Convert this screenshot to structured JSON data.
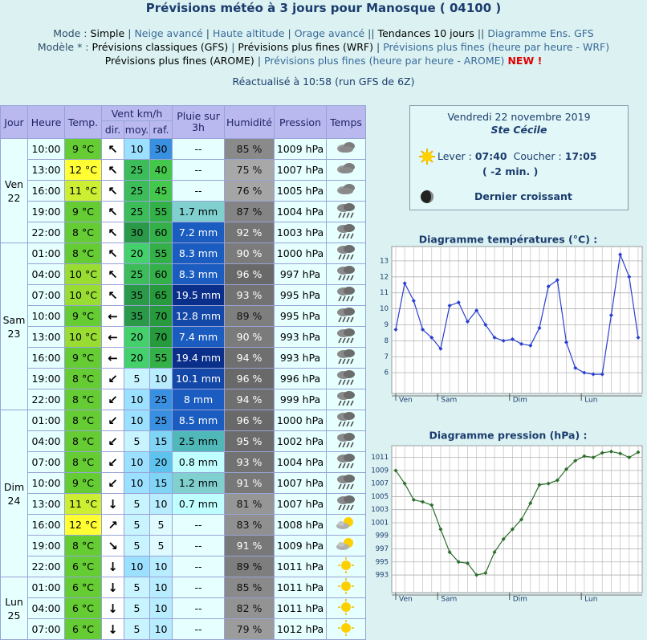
{
  "header": {
    "title": "Prévisions météo à 3 jours pour Manosque ( 04100 )",
    "nav": [
      [
        {
          "text": "Mode :",
          "color": "#2e4d6b"
        },
        {
          "text": "Simple",
          "color": "#000000"
        },
        {
          "text": "|",
          "color": "#2e4d6b"
        },
        {
          "text": "Neige avancé",
          "color": "#3a6a9a"
        },
        {
          "text": "|",
          "color": "#2e4d6b"
        },
        {
          "text": "Haute altitude",
          "color": "#3a6a9a"
        },
        {
          "text": "|",
          "color": "#2e4d6b"
        },
        {
          "text": "Orage avancé",
          "color": "#3a6a9a"
        },
        {
          "text": "||",
          "color": "#2e4d6b"
        },
        {
          "text": "Tendances 10 jours",
          "color": "#000000"
        },
        {
          "text": "||",
          "color": "#2e4d6b"
        },
        {
          "text": "Diagramme Ens. GFS",
          "color": "#3a6a9a"
        }
      ],
      [
        {
          "text": "Modèle * :",
          "color": "#2e4d6b"
        },
        {
          "text": "Prévisions classiques (GFS)",
          "color": "#000000"
        },
        {
          "text": "|",
          "color": "#2e4d6b"
        },
        {
          "text": "Prévisions plus fines (WRF)",
          "color": "#000000"
        },
        {
          "text": "|",
          "color": "#2e4d6b"
        },
        {
          "text": "Prévisions plus fines (heure par heure - WRF)",
          "color": "#3a6a9a"
        }
      ],
      [
        {
          "text": "Prévisions plus fines (AROME)",
          "color": "#000000"
        },
        {
          "text": "|",
          "color": "#2e4d6b"
        },
        {
          "text": "Prévisions plus fines (heure par heure - AROME)",
          "color": "#3a6a9a"
        },
        {
          "text": "NEW !",
          "color": "#e00000"
        }
      ]
    ],
    "updated": "Réactualisé à 10:58 (run GFS de 6Z)"
  },
  "table": {
    "header": {
      "jour": "Jour",
      "heure": "Heure",
      "temp": "Temp.",
      "vent": "Vent km/h",
      "dir": "dir.",
      "moy": "moy.",
      "raf": "raf.",
      "pluie": "Pluie sur 3h",
      "humidite": "Humidité",
      "pression": "Pression",
      "temps": "Temps"
    },
    "days": [
      {
        "name": "Ven",
        "date": "22",
        "rows": [
          {
            "cells": [
              "10:00",
              "9 °C",
              "↖",
              "10",
              "30",
              "--",
              "85 %",
              "1009 hPa"
            ],
            "icon": "cloud"
          },
          {
            "cells": [
              "13:00",
              "12 °C",
              "↖",
              "25",
              "40",
              "--",
              "75 %",
              "1007 hPa"
            ],
            "icon": "cloud"
          },
          {
            "cells": [
              "16:00",
              "11 °C",
              "↖",
              "25",
              "45",
              "--",
              "76 %",
              "1005 hPa"
            ],
            "icon": "cloud"
          },
          {
            "cells": [
              "19:00",
              "9 °C",
              "↖",
              "25",
              "55",
              "1.7 mm",
              "87 %",
              "1004 hPa"
            ],
            "icon": "rain"
          },
          {
            "cells": [
              "22:00",
              "8 °C",
              "↖",
              "30",
              "60",
              "7.2 mm",
              "92 %",
              "1003 hPa"
            ],
            "icon": "rain"
          }
        ]
      },
      {
        "name": "Sam",
        "date": "23",
        "rows": [
          {
            "cells": [
              "01:00",
              "8 °C",
              "↖",
              "20",
              "55",
              "8.3 mm",
              "90 %",
              "1000 hPa"
            ],
            "icon": "rain"
          },
          {
            "cells": [
              "04:00",
              "10 °C",
              "↖",
              "25",
              "60",
              "8.3 mm",
              "96 %",
              "997 hPa"
            ],
            "icon": "rain"
          },
          {
            "cells": [
              "07:00",
              "10 °C",
              "↖",
              "35",
              "65",
              "19.5 mm",
              "93 %",
              "995 hPa"
            ],
            "icon": "rain"
          },
          {
            "cells": [
              "10:00",
              "9 °C",
              "←",
              "35",
              "70",
              "12.8 mm",
              "89 %",
              "995 hPa"
            ],
            "icon": "rain"
          },
          {
            "cells": [
              "13:00",
              "10 °C",
              "←",
              "20",
              "70",
              "7.4 mm",
              "90 %",
              "993 hPa"
            ],
            "icon": "rain"
          },
          {
            "cells": [
              "16:00",
              "9 °C",
              "←",
              "20",
              "55",
              "19.4 mm",
              "94 %",
              "993 hPa"
            ],
            "icon": "rain"
          },
          {
            "cells": [
              "19:00",
              "8 °C",
              "↙",
              "5",
              "10",
              "10.1 mm",
              "96 %",
              "996 hPa"
            ],
            "icon": "rain"
          },
          {
            "cells": [
              "22:00",
              "8 °C",
              "↙",
              "10",
              "25",
              "8 mm",
              "94 %",
              "999 hPa"
            ],
            "icon": "rain"
          }
        ]
      },
      {
        "name": "Dim",
        "date": "24",
        "rows": [
          {
            "cells": [
              "01:00",
              "8 °C",
              "↙",
              "10",
              "25",
              "8.5 mm",
              "96 %",
              "1000 hPa"
            ],
            "icon": "rain"
          },
          {
            "cells": [
              "04:00",
              "8 °C",
              "↙",
              "5",
              "15",
              "2.5 mm",
              "95 %",
              "1002 hPa"
            ],
            "icon": "rain"
          },
          {
            "cells": [
              "07:00",
              "8 °C",
              "↙",
              "10",
              "20",
              "0.8 mm",
              "93 %",
              "1004 hPa"
            ],
            "icon": "rain"
          },
          {
            "cells": [
              "10:00",
              "9 °C",
              "↙",
              "10",
              "15",
              "1.2 mm",
              "91 %",
              "1007 hPa"
            ],
            "icon": "rain"
          },
          {
            "cells": [
              "13:00",
              "11 °C",
              "↓",
              "5",
              "10",
              "0.7 mm",
              "81 %",
              "1007 hPa"
            ],
            "icon": "rain"
          },
          {
            "cells": [
              "16:00",
              "12 °C",
              "↗",
              "5",
              "5",
              "--",
              "83 %",
              "1008 hPa"
            ],
            "icon": "sun-cloud"
          },
          {
            "cells": [
              "19:00",
              "8 °C",
              "↘",
              "5",
              "5",
              "--",
              "91 %",
              "1009 hPa"
            ],
            "icon": "sun-cloud"
          },
          {
            "cells": [
              "22:00",
              "6 °C",
              "↓",
              "10",
              "10",
              "--",
              "89 %",
              "1011 hPa"
            ],
            "icon": "sun"
          }
        ]
      },
      {
        "name": "Lun",
        "date": "25",
        "rows": [
          {
            "cells": [
              "01:00",
              "6 °C",
              "↓",
              "5",
              "10",
              "--",
              "85 %",
              "1011 hPa"
            ],
            "icon": "sun"
          },
          {
            "cells": [
              "04:00",
              "6 °C",
              "↓",
              "5",
              "10",
              "--",
              "82 %",
              "1011 hPa"
            ],
            "icon": "sun"
          },
          {
            "cells": [
              "07:00",
              "6 °C",
              "↓",
              "5",
              "10",
              "--",
              "79 %",
              "1012 hPa"
            ],
            "icon": "sun"
          }
        ]
      }
    ]
  },
  "ephemeris": {
    "date": "Vendredi 22 novembre 2019",
    "saint": "Ste Cécile",
    "sunrise_label": "Lever :",
    "sunrise": "07:40",
    "sunset_label": "Coucher :",
    "sunset": "17:05",
    "daylength": "( -2 min. )",
    "moon": "Dernier croissant"
  },
  "chart_data": [
    {
      "type": "line",
      "title": "Diagramme températures (°C) :",
      "color": "#2a3fcf",
      "values": [
        8.7,
        11.6,
        10.5,
        8.7,
        8.2,
        7.5,
        10.2,
        10.4,
        9.2,
        9.9,
        9.0,
        8.2,
        8.0,
        8.1,
        7.8,
        7.7,
        8.8,
        11.4,
        11.8,
        7.9,
        6.3,
        6.0,
        5.9,
        5.9,
        9.6,
        13.4,
        12.0,
        8.2
      ],
      "ylim": [
        4.7,
        13.9
      ],
      "yticks": [
        6,
        7,
        8,
        9,
        10,
        11,
        12,
        13
      ],
      "xticks": [
        {
          "value": 0,
          "label": "Ven"
        },
        {
          "value": 4.67,
          "label": "Sam"
        },
        {
          "value": 12.67,
          "label": "Dim"
        },
        {
          "value": 20.67,
          "label": "Lun"
        }
      ],
      "grid": true
    },
    {
      "type": "line",
      "title": "Diagramme pression (hPa) :",
      "color": "#2c6e2c",
      "values": [
        1009,
        1007,
        1004.5,
        1004.2,
        1003.7,
        1000,
        996.5,
        995,
        994.8,
        993,
        993.3,
        996.5,
        998.5,
        1000,
        1001.5,
        1004,
        1006.8,
        1007,
        1007.5,
        1009.2,
        1010.5,
        1011.2,
        1011,
        1011.7,
        1011.9,
        1011.6,
        1011,
        1011.8
      ],
      "ylim": [
        990.3,
        1012.8
      ],
      "yticks": [
        993,
        995,
        997,
        999,
        1001,
        1003,
        1005,
        1007,
        1009,
        1011
      ],
      "xticks": [
        {
          "value": 0,
          "label": "Ven"
        },
        {
          "value": 4.67,
          "label": "Sam"
        },
        {
          "value": 12.67,
          "label": "Dim"
        },
        {
          "value": 20.67,
          "label": "Lun"
        }
      ],
      "grid": true
    }
  ]
}
